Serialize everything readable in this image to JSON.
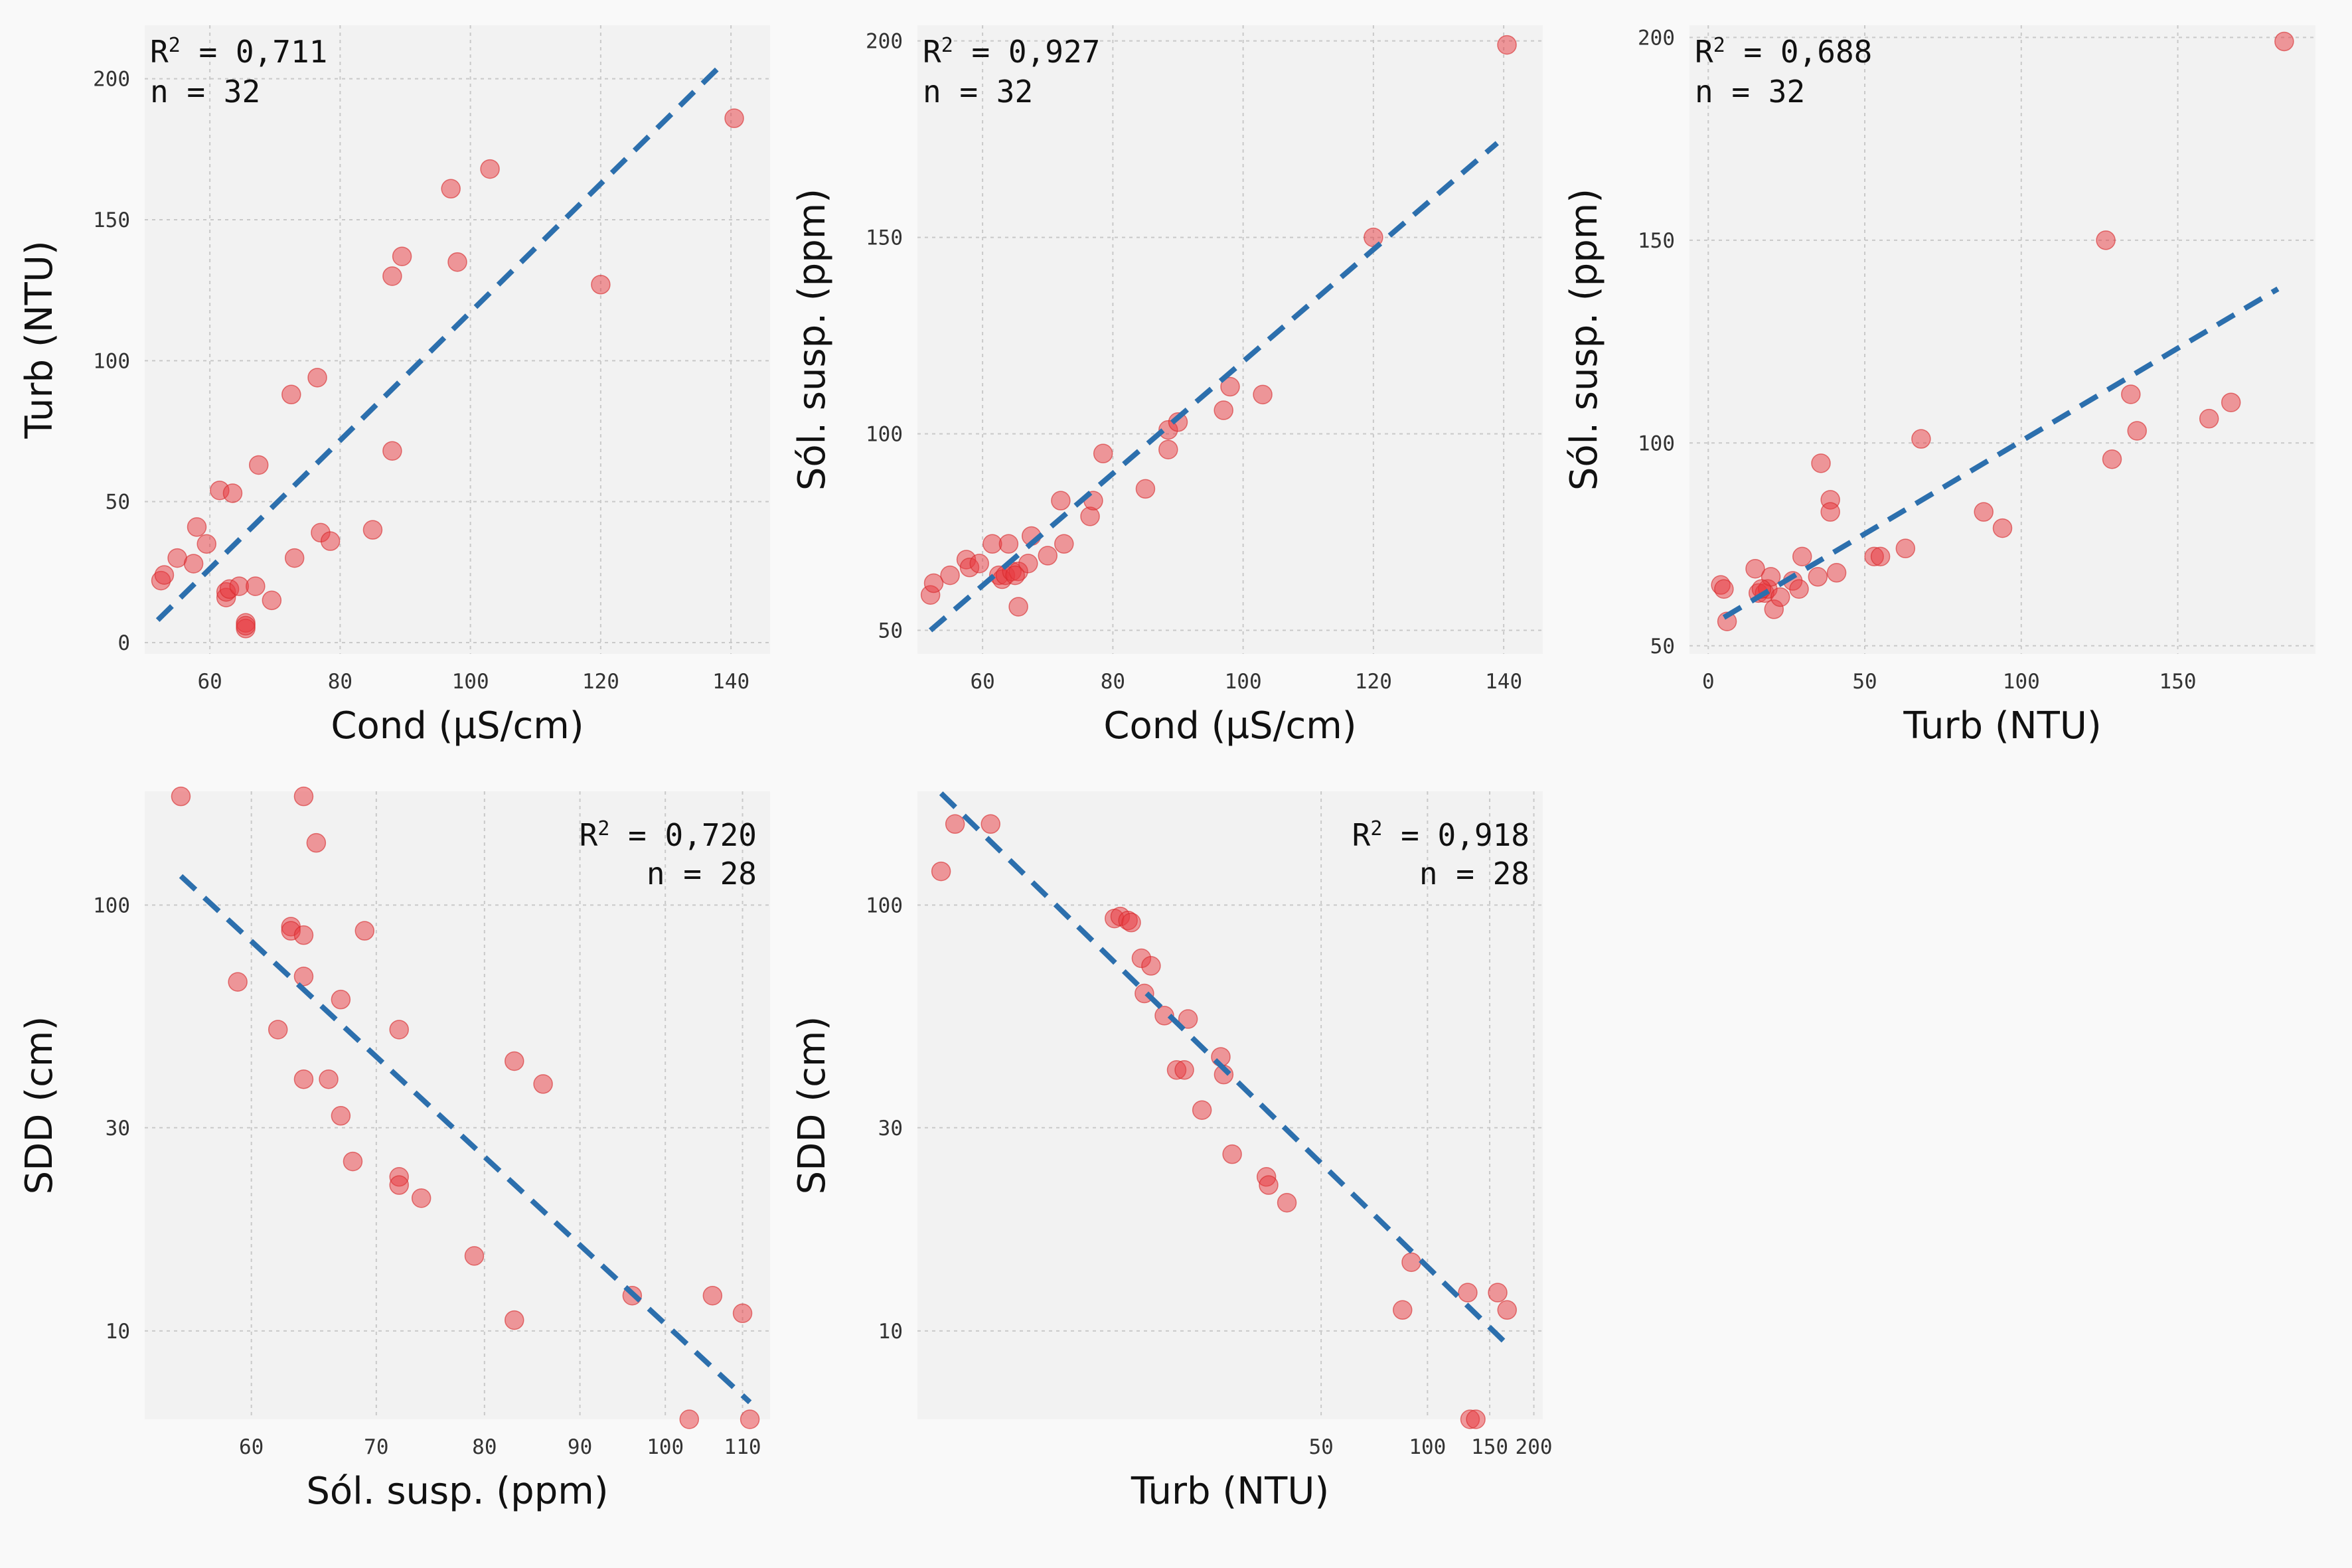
{
  "chart_data": [
    {
      "type": "scatter",
      "xlabel": "Cond (µS/cm)",
      "ylabel": "Turb (NTU)",
      "annotation": {
        "r2_label": "0,711",
        "n_label": "32"
      },
      "xlim": [
        50,
        146
      ],
      "ylim": [
        -4,
        219
      ],
      "xticks": [
        60,
        80,
        100,
        120,
        140
      ],
      "yticks": [
        0,
        50,
        100,
        150,
        200
      ],
      "xscale": "linear",
      "yscale": "linear",
      "fit": [
        [
          52,
          8
        ],
        [
          139,
          206
        ]
      ],
      "points": [
        [
          52.5,
          22
        ],
        [
          53,
          24
        ],
        [
          55,
          30
        ],
        [
          57.5,
          28
        ],
        [
          58,
          41
        ],
        [
          59.5,
          35
        ],
        [
          61.5,
          54
        ],
        [
          62.5,
          16
        ],
        [
          62.5,
          18
        ],
        [
          63,
          19
        ],
        [
          63.5,
          53
        ],
        [
          64.5,
          20
        ],
        [
          65.5,
          7
        ],
        [
          65.5,
          5
        ],
        [
          65.5,
          6
        ],
        [
          67,
          20
        ],
        [
          67.5,
          63
        ],
        [
          69.5,
          15
        ],
        [
          72.5,
          88
        ],
        [
          73,
          30
        ],
        [
          76.5,
          94
        ],
        [
          77,
          39
        ],
        [
          78.5,
          36
        ],
        [
          85,
          40
        ],
        [
          88,
          130
        ],
        [
          88,
          68
        ],
        [
          89.5,
          137
        ],
        [
          97,
          161
        ],
        [
          98,
          135
        ],
        [
          103,
          168
        ],
        [
          120,
          127
        ],
        [
          140.5,
          186
        ]
      ]
    },
    {
      "type": "scatter",
      "xlabel": "Cond (µS/cm)",
      "ylabel": "Sól. susp. (ppm)",
      "annotation": {
        "r2_label": "0,927",
        "n_label": "32"
      },
      "xlim": [
        50,
        146
      ],
      "ylim": [
        44,
        204
      ],
      "xticks": [
        60,
        80,
        100,
        120,
        140
      ],
      "yticks": [
        50,
        100,
        150,
        200
      ],
      "xscale": "linear",
      "yscale": "linear",
      "fit": [
        [
          52,
          50
        ],
        [
          139,
          174
        ]
      ],
      "points": [
        [
          52,
          59
        ],
        [
          52.5,
          62
        ],
        [
          55,
          64
        ],
        [
          57.5,
          68
        ],
        [
          58,
          66
        ],
        [
          59.5,
          67
        ],
        [
          61.5,
          72
        ],
        [
          62.5,
          64
        ],
        [
          63,
          63
        ],
        [
          63.5,
          64
        ],
        [
          64,
          72
        ],
        [
          64.5,
          65
        ],
        [
          65.5,
          56
        ],
        [
          65.5,
          65
        ],
        [
          67,
          67
        ],
        [
          67.5,
          74
        ],
        [
          70,
          69
        ],
        [
          72,
          83
        ],
        [
          72.5,
          72
        ],
        [
          76.5,
          79
        ],
        [
          77,
          83
        ],
        [
          78.5,
          95
        ],
        [
          85,
          86
        ],
        [
          88.5,
          101
        ],
        [
          88.5,
          96
        ],
        [
          90,
          103
        ],
        [
          97,
          106
        ],
        [
          98,
          112
        ],
        [
          103,
          110
        ],
        [
          120,
          150
        ],
        [
          140.5,
          199
        ],
        [
          65,
          64
        ]
      ]
    },
    {
      "type": "scatter",
      "xlabel": "Turb (NTU)",
      "ylabel": "Sól. susp. (ppm)",
      "annotation": {
        "r2_label": "0,688",
        "n_label": "32"
      },
      "xlim": [
        -6,
        194
      ],
      "ylim": [
        48,
        203
      ],
      "xticks": [
        0,
        50,
        100,
        150
      ],
      "yticks": [
        50,
        100,
        150,
        200
      ],
      "xscale": "linear",
      "yscale": "linear",
      "fit": [
        [
          5,
          57
        ],
        [
          182,
          138
        ]
      ],
      "points": [
        [
          4,
          65
        ],
        [
          5,
          64
        ],
        [
          6,
          56
        ],
        [
          15,
          69
        ],
        [
          16,
          63
        ],
        [
          18,
          63
        ],
        [
          19,
          64
        ],
        [
          20,
          67
        ],
        [
          21,
          59
        ],
        [
          23,
          62
        ],
        [
          27,
          66
        ],
        [
          29,
          64
        ],
        [
          30,
          72
        ],
        [
          35,
          67
        ],
        [
          36,
          95
        ],
        [
          39,
          86
        ],
        [
          39,
          83
        ],
        [
          41,
          68
        ],
        [
          53,
          72
        ],
        [
          55,
          72
        ],
        [
          63,
          74
        ],
        [
          68,
          101
        ],
        [
          88,
          83
        ],
        [
          94,
          79
        ],
        [
          127,
          150
        ],
        [
          129,
          96
        ],
        [
          135,
          112
        ],
        [
          137,
          103
        ],
        [
          160,
          106
        ],
        [
          167,
          110
        ],
        [
          184,
          199
        ],
        [
          17,
          64
        ]
      ]
    },
    {
      "type": "scatter",
      "xlabel": "Sól. susp. (ppm)",
      "ylabel": "SDD (cm)",
      "annotation": {
        "r2_label": "0,720",
        "n_label": "28"
      },
      "xlim": [
        52.6,
        113.8
      ],
      "ylim": [
        6.2,
        185
      ],
      "xticks": [
        60,
        70,
        80,
        90,
        100,
        110
      ],
      "yticks": [
        10,
        30,
        100
      ],
      "xscale": "log",
      "yscale": "log",
      "fit": [
        [
          55,
          117
        ],
        [
          111,
          6.8
        ]
      ],
      "points": [
        [
          55,
          180
        ],
        [
          59,
          66
        ],
        [
          62,
          51
        ],
        [
          63,
          89
        ],
        [
          63,
          87
        ],
        [
          64,
          180
        ],
        [
          64,
          85
        ],
        [
          64,
          68
        ],
        [
          64,
          39
        ],
        [
          65,
          140
        ],
        [
          66,
          39
        ],
        [
          67,
          60
        ],
        [
          67,
          32
        ],
        [
          68,
          25
        ],
        [
          69,
          87
        ],
        [
          72,
          51
        ],
        [
          72,
          23
        ],
        [
          72,
          22
        ],
        [
          74,
          20.5
        ],
        [
          79,
          15
        ],
        [
          83,
          43
        ],
        [
          83,
          10.6
        ],
        [
          86,
          38
        ],
        [
          96,
          12.1
        ],
        [
          103,
          6.2
        ],
        [
          106,
          12.1
        ],
        [
          110,
          11
        ],
        [
          111,
          6.2
        ]
      ]
    },
    {
      "type": "scatter",
      "xlabel": "Turb (NTU)",
      "ylabel": "SDD (cm)",
      "annotation": {
        "r2_label": "0,918",
        "n_label": "28"
      },
      "xlim": [
        3.6,
        212
      ],
      "ylim": [
        6.2,
        185
      ],
      "xticks": [
        50,
        100,
        150,
        200
      ],
      "xticklabels": [
        "50",
        "100",
        "150",
        "200"
      ],
      "yticks": [
        10,
        30,
        100
      ],
      "xscale": "log",
      "yscale": "log",
      "fit": [
        [
          4.2,
          183
        ],
        [
          168,
          9.3
        ]
      ],
      "points": [
        [
          4.2,
          120
        ],
        [
          4.6,
          155
        ],
        [
          5.8,
          155
        ],
        [
          13,
          93
        ],
        [
          13.5,
          94
        ],
        [
          14.2,
          92
        ],
        [
          14.5,
          91
        ],
        [
          15.5,
          75
        ],
        [
          15.8,
          62
        ],
        [
          16.5,
          72
        ],
        [
          18,
          55
        ],
        [
          19.5,
          41
        ],
        [
          20.5,
          41
        ],
        [
          21,
          54
        ],
        [
          23,
          33
        ],
        [
          26,
          44
        ],
        [
          26.5,
          40
        ],
        [
          28,
          26
        ],
        [
          35,
          23
        ],
        [
          35.5,
          22
        ],
        [
          40,
          20
        ],
        [
          85,
          11.2
        ],
        [
          90,
          14.5
        ],
        [
          130,
          12.3
        ],
        [
          132,
          6.2
        ],
        [
          137,
          6.2
        ],
        [
          158,
          12.3
        ],
        [
          168,
          11.2
        ]
      ]
    }
  ]
}
